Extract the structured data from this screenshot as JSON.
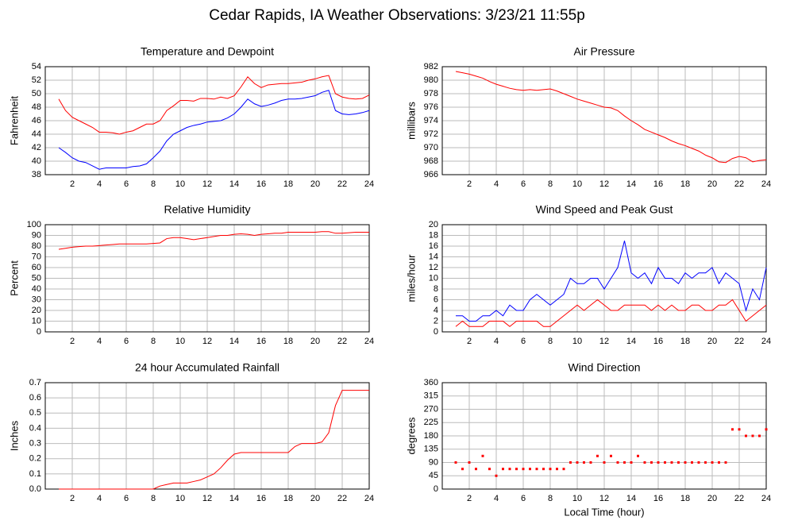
{
  "title": "Cedar Rapids, IA Weather Observations: 3/23/21 11:55p",
  "chart_data": [
    {
      "type": "line",
      "title": "Temperature and Dewpoint",
      "ylabel": "Fahrenheit",
      "x": [
        1,
        1.5,
        2,
        2.5,
        3,
        3.5,
        4,
        4.5,
        5,
        5.5,
        6,
        6.5,
        7,
        7.5,
        8,
        8.5,
        9,
        9.5,
        10,
        10.5,
        11,
        11.5,
        12,
        12.5,
        13,
        13.5,
        14,
        14.5,
        15,
        15.5,
        16,
        16.5,
        17,
        17.5,
        18,
        18.5,
        19,
        19.5,
        20,
        20.5,
        21,
        21.5,
        22,
        22.5,
        23,
        23.5,
        24
      ],
      "series": [
        {
          "color": "#ff0000",
          "values": [
            49.2,
            47.5,
            46.5,
            46,
            45.5,
            45,
            44.3,
            44.3,
            44.2,
            44,
            44.3,
            44.5,
            45,
            45.5,
            45.5,
            46,
            47.5,
            48.2,
            49,
            49,
            48.9,
            49.3,
            49.3,
            49.2,
            49.5,
            49.3,
            49.7,
            51,
            52.5,
            51.5,
            50.9,
            51.3,
            51.4,
            51.5,
            51.5,
            51.6,
            51.7,
            52,
            52.2,
            52.5,
            52.7,
            50,
            49.5,
            49.3,
            49.2,
            49.3,
            49.8
          ]
        },
        {
          "color": "#0000ff",
          "values": [
            42,
            41.3,
            40.5,
            40,
            39.8,
            39.3,
            38.8,
            39,
            39,
            39,
            39,
            39.2,
            39.3,
            39.6,
            40.5,
            41.5,
            43,
            44,
            44.5,
            45,
            45.3,
            45.5,
            45.8,
            45.9,
            46,
            46.4,
            47,
            48,
            49.2,
            48.5,
            48.1,
            48.3,
            48.6,
            49,
            49.2,
            49.2,
            49.3,
            49.5,
            49.7,
            50.2,
            50.5,
            47.5,
            47,
            46.9,
            47,
            47.2,
            47.5
          ]
        }
      ],
      "xlim": [
        0,
        24
      ],
      "xticks": [
        2,
        4,
        6,
        8,
        10,
        12,
        14,
        16,
        18,
        20,
        22,
        24
      ],
      "ylim": [
        38,
        54
      ],
      "yticks": [
        38,
        40,
        42,
        44,
        46,
        48,
        50,
        52,
        54
      ],
      "grid": true
    },
    {
      "type": "line",
      "title": "Air Pressure",
      "ylabel": "millibars",
      "x": [
        1,
        1.5,
        2,
        2.5,
        3,
        3.5,
        4,
        4.5,
        5,
        5.5,
        6,
        6.5,
        7,
        7.5,
        8,
        8.5,
        9,
        9.5,
        10,
        10.5,
        11,
        11.5,
        12,
        12.5,
        13,
        13.5,
        14,
        14.5,
        15,
        15.5,
        16,
        16.5,
        17,
        17.5,
        18,
        18.5,
        19,
        19.5,
        20,
        20.5,
        21,
        21.5,
        22,
        22.5,
        23,
        23.5,
        24
      ],
      "series": [
        {
          "color": "#ff0000",
          "values": [
            981.3,
            981.1,
            980.9,
            980.6,
            980.3,
            979.8,
            979.4,
            979.1,
            978.8,
            978.6,
            978.5,
            978.6,
            978.5,
            978.6,
            978.7,
            978.4,
            978,
            977.6,
            977.2,
            976.9,
            976.6,
            976.3,
            976,
            975.9,
            975.5,
            974.7,
            974,
            973.4,
            972.7,
            972.3,
            971.9,
            971.5,
            971,
            970.6,
            970.3,
            969.9,
            969.5,
            968.9,
            968.5,
            967.9,
            967.8,
            968.4,
            968.7,
            968.5,
            967.9,
            968.1,
            968.2
          ]
        }
      ],
      "xlim": [
        0,
        24
      ],
      "xticks": [
        2,
        4,
        6,
        8,
        10,
        12,
        14,
        16,
        18,
        20,
        22,
        24
      ],
      "ylim": [
        966,
        982
      ],
      "yticks": [
        966,
        968,
        970,
        972,
        974,
        976,
        978,
        980,
        982
      ],
      "grid": true
    },
    {
      "type": "line",
      "title": "Relative Humidity",
      "ylabel": "Percent",
      "x": [
        1,
        1.5,
        2,
        2.5,
        3,
        3.5,
        4,
        4.5,
        5,
        5.5,
        6,
        6.5,
        7,
        7.5,
        8,
        8.5,
        9,
        9.5,
        10,
        10.5,
        11,
        11.5,
        12,
        12.5,
        13,
        13.5,
        14,
        14.5,
        15,
        15.5,
        16,
        16.5,
        17,
        17.5,
        18,
        18.5,
        19,
        19.5,
        20,
        20.5,
        21,
        21.5,
        22,
        22.5,
        23,
        23.5,
        24
      ],
      "series": [
        {
          "color": "#ff0000",
          "values": [
            77,
            78,
            79,
            79.5,
            80,
            80,
            80.5,
            81,
            81.5,
            82,
            82,
            82,
            82,
            82,
            82.5,
            83,
            87,
            88,
            88,
            87,
            86,
            87,
            88,
            89,
            90,
            90,
            91,
            91.5,
            91,
            90,
            91,
            91.5,
            92,
            92,
            93,
            93,
            93,
            93,
            93,
            93.5,
            93.5,
            92,
            92,
            92.5,
            93,
            93,
            93
          ]
        }
      ],
      "xlim": [
        0,
        24
      ],
      "xticks": [
        2,
        4,
        6,
        8,
        10,
        12,
        14,
        16,
        18,
        20,
        22,
        24
      ],
      "ylim": [
        0,
        100
      ],
      "yticks": [
        0,
        10,
        20,
        30,
        40,
        50,
        60,
        70,
        80,
        90,
        100
      ],
      "grid": true
    },
    {
      "type": "line",
      "title": "Wind Speed and Peak Gust",
      "ylabel": "miles/hour",
      "x": [
        1,
        1.5,
        2,
        2.5,
        3,
        3.5,
        4,
        4.5,
        5,
        5.5,
        6,
        6.5,
        7,
        7.5,
        8,
        8.5,
        9,
        9.5,
        10,
        10.5,
        11,
        11.5,
        12,
        12.5,
        13,
        13.5,
        14,
        14.5,
        15,
        15.5,
        16,
        16.5,
        17,
        17.5,
        18,
        18.5,
        19,
        19.5,
        20,
        20.5,
        21,
        21.5,
        22,
        22.5,
        23,
        23.5,
        24
      ],
      "series": [
        {
          "color": "#0000ff",
          "values": [
            3,
            3,
            2,
            2,
            3,
            3,
            4,
            3,
            5,
            4,
            4,
            6,
            7,
            6,
            5,
            6,
            7,
            10,
            9,
            9,
            10,
            10,
            8,
            10,
            12,
            17,
            11,
            10,
            11,
            9,
            12,
            10,
            10,
            9,
            11,
            10,
            11,
            11,
            12,
            9,
            11,
            10,
            9,
            4,
            8,
            6,
            12
          ]
        },
        {
          "color": "#ff0000",
          "values": [
            1,
            2,
            1,
            1,
            1,
            2,
            2,
            2,
            1,
            2,
            2,
            2,
            2,
            1,
            1,
            2,
            3,
            4,
            5,
            4,
            5,
            6,
            5,
            4,
            4,
            5,
            5,
            5,
            5,
            4,
            5,
            4,
            5,
            4,
            4,
            5,
            5,
            4,
            4,
            5,
            5,
            6,
            4,
            2,
            3,
            4,
            5
          ]
        }
      ],
      "xlim": [
        0,
        24
      ],
      "xticks": [
        2,
        4,
        6,
        8,
        10,
        12,
        14,
        16,
        18,
        20,
        22,
        24
      ],
      "ylim": [
        0,
        20
      ],
      "yticks": [
        0,
        2,
        4,
        6,
        8,
        10,
        12,
        14,
        16,
        18,
        20
      ],
      "grid": true
    },
    {
      "type": "line",
      "title": "24 hour Accumulated Rainfall",
      "ylabel": "Inches",
      "x": [
        1,
        1.5,
        2,
        2.5,
        3,
        3.5,
        4,
        4.5,
        5,
        5.5,
        6,
        6.5,
        7,
        7.5,
        8,
        8.5,
        9,
        9.5,
        10,
        10.5,
        11,
        11.5,
        12,
        12.5,
        13,
        13.5,
        14,
        14.5,
        15,
        15.5,
        16,
        16.5,
        17,
        17.5,
        18,
        18.5,
        19,
        19.5,
        20,
        20.5,
        21,
        21.5,
        22,
        22.5,
        23,
        23.5,
        24
      ],
      "series": [
        {
          "color": "#ff0000",
          "values": [
            0,
            0,
            0,
            0,
            0,
            0,
            0,
            0,
            0,
            0,
            0,
            0,
            0,
            0,
            0,
            0.02,
            0.03,
            0.04,
            0.04,
            0.04,
            0.05,
            0.06,
            0.08,
            0.1,
            0.14,
            0.19,
            0.23,
            0.24,
            0.24,
            0.24,
            0.24,
            0.24,
            0.24,
            0.24,
            0.24,
            0.28,
            0.3,
            0.3,
            0.3,
            0.31,
            0.37,
            0.55,
            0.65,
            0.65,
            0.65,
            0.65,
            0.65
          ]
        }
      ],
      "xlim": [
        0,
        24
      ],
      "xticks": [
        2,
        4,
        6,
        8,
        10,
        12,
        14,
        16,
        18,
        20,
        22,
        24
      ],
      "ylim": [
        0,
        0.7
      ],
      "yticks": [
        {
          "value": 0,
          "label": "0.0"
        },
        0.1,
        0.2,
        0.3,
        0.4,
        0.5,
        0.6,
        0.7
      ],
      "grid": true
    },
    {
      "type": "scatter",
      "title": "Wind Direction",
      "ylabel": "degrees",
      "xlabel": "Local Time (hour)",
      "x": [
        1,
        1.5,
        2,
        2.5,
        3,
        3.5,
        4,
        4.5,
        5,
        5.5,
        6,
        6.5,
        7,
        7.5,
        8,
        8.5,
        9,
        9.5,
        10,
        10.5,
        11,
        11.5,
        12,
        12.5,
        13,
        13.5,
        14,
        14.5,
        15,
        15.5,
        16,
        16.5,
        17,
        17.5,
        18,
        18.5,
        19,
        19.5,
        20,
        20.5,
        21,
        21.5,
        22,
        22.5,
        23,
        23.5,
        24
      ],
      "series": [
        {
          "color": "#ff0000",
          "values": [
            90,
            68,
            90,
            68,
            112,
            68,
            45,
            68,
            68,
            68,
            68,
            68,
            68,
            68,
            68,
            68,
            68,
            90,
            90,
            90,
            90,
            112,
            90,
            112,
            90,
            90,
            90,
            112,
            90,
            90,
            90,
            90,
            90,
            90,
            90,
            90,
            90,
            90,
            90,
            90,
            90,
            202,
            202,
            180,
            180,
            180,
            202
          ]
        }
      ],
      "xlim": [
        0,
        24
      ],
      "xticks": [
        2,
        4,
        6,
        8,
        10,
        12,
        14,
        16,
        18,
        20,
        22,
        24
      ],
      "ylim": [
        0,
        360
      ],
      "yticks": [
        0,
        45,
        90,
        135,
        180,
        225,
        270,
        315,
        360
      ],
      "grid": true
    }
  ]
}
